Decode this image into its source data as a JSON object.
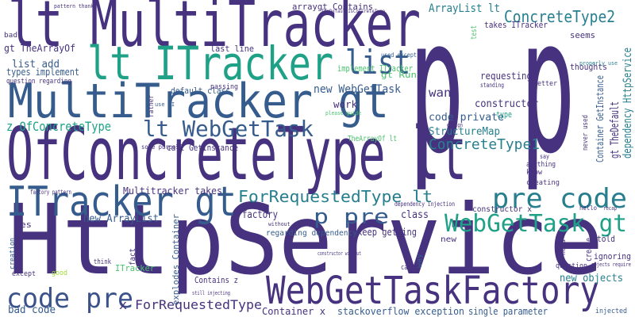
{
  "words": [
    "HttpService",
    "p p",
    "lt MultiTracker",
    "OfConcreteType lt",
    "MultiTracker gt",
    "lt ITracker",
    "list",
    "ITracker gt",
    "WebGetTaskFactory",
    "code pre",
    "lt WebGetTask",
    "pre code",
    "p pre",
    "WebGetTask gt",
    "ForRequestedType lt",
    "ConcreteType2",
    "ConcreteType1",
    "new WebGetTask",
    "z OfConcreteType",
    "code private",
    "StructureMap",
    "want",
    "constructor",
    "Container x",
    "stackoverflow exception",
    "single parameter",
    "x ForRequestedType",
    "bad code",
    "Multitracker takes",
    "new ArrayList",
    "factory",
    "class",
    "keep getting",
    "regarding dependency",
    "new objects",
    "ArrayList lt",
    "arraygt Contains",
    "gt TheArrayOf",
    "list add",
    "types implement",
    "question regarding",
    "last line",
    "implement ITracker",
    "gt Run",
    "requesting",
    "default class",
    "work",
    "call GetInstance",
    "TheArrayOf lt",
    "takes ITracker",
    "seems",
    "thoughts",
    "test",
    "gt TheDefault",
    "dependency HttpService",
    "Container GetInstance",
    "yes",
    "fact",
    "explodes Container",
    "Contains z",
    "ITracker",
    "create",
    "told",
    "ignoring",
    "constructor x",
    "dependency injection",
    "new",
    "passing",
    "question",
    "used except",
    "better",
    "type",
    "anything",
    "know",
    "say",
    "creating",
    "hello",
    "injected",
    "except",
    "think",
    "bad",
    "good",
    "creation",
    "factory pattern",
    "rather",
    "sole purpose",
    "without simply",
    "still injecting",
    "way",
    "call",
    "need",
    "please guide",
    "use DI",
    "pattern thanks",
    "TheDefaultIsConcreteType",
    "never used",
    "standing",
    "properly use",
    "recap",
    "objects require",
    "constructor without",
    "design"
  ]
}
